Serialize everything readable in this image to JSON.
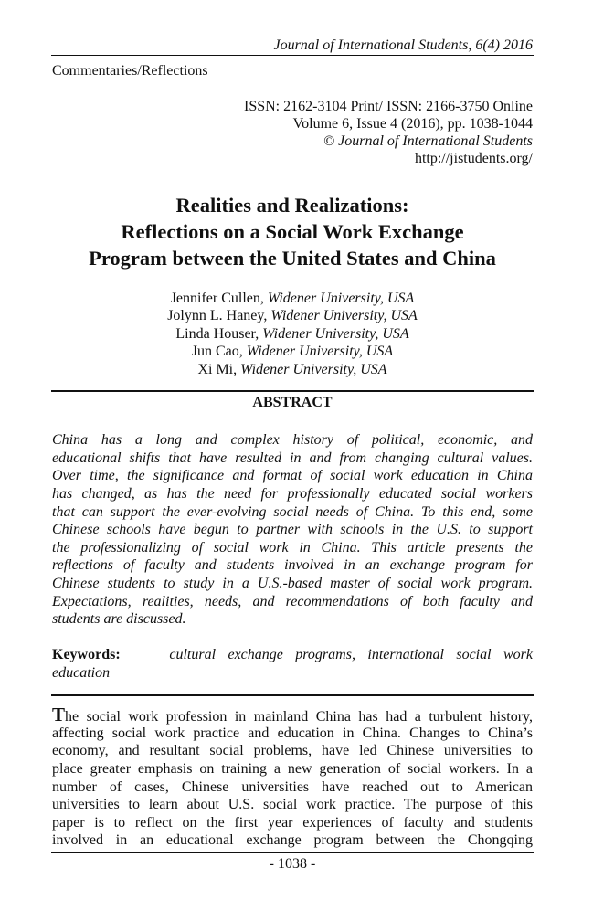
{
  "running_header": "Journal of International Students, 6(4) 2016",
  "section": "Commentaries/Reflections",
  "issn": "ISSN: 2162-3104 Print/ ISSN: 2166-3750 Online",
  "volume": "Volume 6, Issue 4 (2016), pp. 1038-1044",
  "copyright": "© Journal of International Students",
  "url": "http://jistudents.org/",
  "title_lines": [
    "Realities and Realizations:",
    "Reflections on a Social Work Exchange",
    "Program between the United States and China"
  ],
  "authors": [
    {
      "name": "Jennifer Cullen, ",
      "affil": "Widener University, USA"
    },
    {
      "name": "Jolynn L. Haney, ",
      "affil": "Widener University, USA"
    },
    {
      "name": "Linda Houser, ",
      "affil": "Widener University, USA"
    },
    {
      "name": "Jun Cao, ",
      "affil": "Widener University, USA"
    },
    {
      "name": "Xi Mi, ",
      "affil": "Widener University, USA"
    }
  ],
  "abstract_heading": "ABSTRACT",
  "abstract_lines": [
    "China has a long and complex history of political, economic, and",
    "educational shifts that have resulted in and from changing cultural values.",
    "Over time, the significance and format of social work education in China",
    "has changed, as has the need for professionally educated social workers",
    "that can support the ever-evolving social needs of China.  To this end, some",
    "Chinese schools have begun to partner with schools in the U.S. to support",
    "the professionalizing of social work in China.  This article presents the",
    "reflections of faculty and students involved in an exchange program for",
    "Chinese students to study in a U.S.-based master of social work program.",
    "Expectations, realities, needs, and recommendations of both faculty and",
    "students are discussed."
  ],
  "keywords_label": "Keywords:",
  "keywords_lines": [
    "cultural exchange programs, international social work",
    "education"
  ],
  "body_dropcap": "T",
  "body_lines": [
    "he social work profession in mainland China has had a turbulent history,",
    "affecting social work practice and education in China.  Changes to China’s",
    "economy, and resultant social problems, have led Chinese universities to",
    "place greater emphasis on training a new generation of social workers.  In a",
    "number of cases, Chinese universities have reached out to American",
    "universities to learn about U.S. social work practice.  The purpose of this",
    "paper is to reflect on the first year experiences of faculty and students",
    "involved in an educational exchange program between the Chongqing"
  ],
  "page_number": "- 1038 -"
}
